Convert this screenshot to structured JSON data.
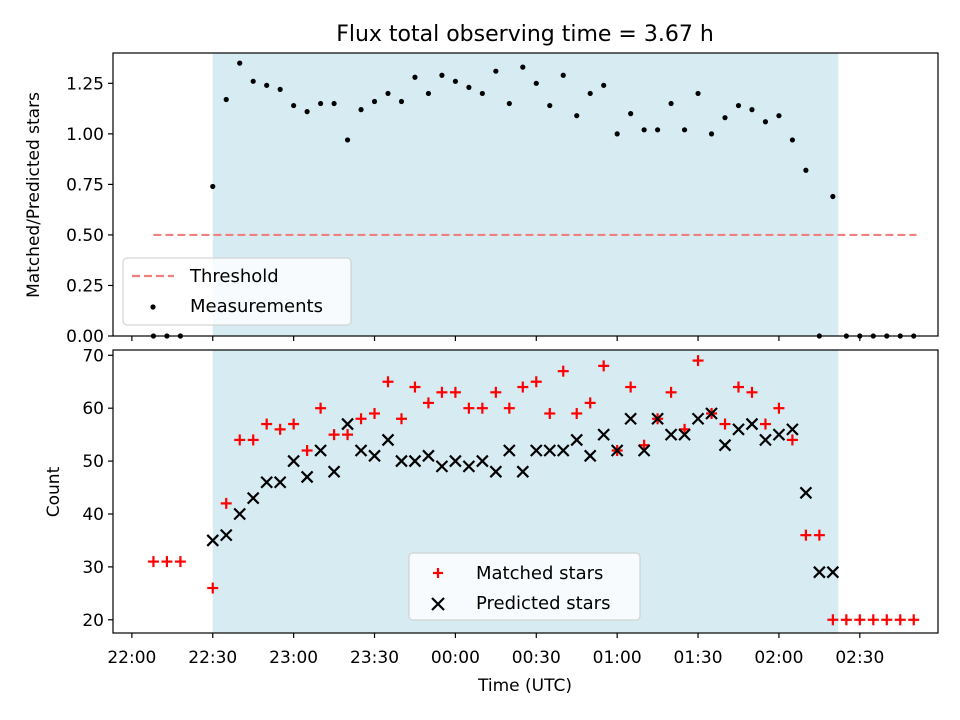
{
  "chart_data": [
    {
      "type": "scatter",
      "title": "Flux total observing time = 3.67 h",
      "ylabel": "Matched/Predicted stars",
      "xlabel": "",
      "ylim": [
        0,
        1.4
      ],
      "xlim": [
        -7,
        299
      ],
      "grid": false,
      "legend_placement": "lower-left",
      "x_unit": "minutes after 22:00 UTC",
      "shaded_span": [
        30,
        262
      ],
      "yticks": [
        0.0,
        0.25,
        0.5,
        0.75,
        1.0,
        1.25
      ],
      "ytick_labels": [
        "0.00",
        "0.25",
        "0.50",
        "0.75",
        "1.00",
        "1.25"
      ],
      "threshold": {
        "name": "Threshold",
        "y": 0.5,
        "x_range": [
          8,
          291
        ],
        "color": "#f08080"
      },
      "measurements": {
        "name": "Measurements",
        "color": "#000000",
        "x": [
          8,
          13,
          18,
          30,
          35,
          40,
          45,
          50,
          55,
          60,
          65,
          70,
          75,
          80,
          85,
          90,
          95,
          100,
          105,
          110,
          115,
          120,
          125,
          130,
          135,
          140,
          145,
          150,
          155,
          160,
          165,
          170,
          175,
          180,
          185,
          190,
          195,
          200,
          205,
          210,
          215,
          220,
          225,
          230,
          235,
          240,
          245,
          250,
          255,
          260,
          265,
          270,
          275,
          280,
          285,
          290
        ],
        "y": [
          0.0,
          0.0,
          0.0,
          0.74,
          1.17,
          1.35,
          1.26,
          1.24,
          1.22,
          1.14,
          1.11,
          1.15,
          1.15,
          0.97,
          1.12,
          1.16,
          1.2,
          1.16,
          1.28,
          1.2,
          1.29,
          1.26,
          1.23,
          1.2,
          1.31,
          1.15,
          1.33,
          1.25,
          1.14,
          1.29,
          1.09,
          1.2,
          1.24,
          1.0,
          1.1,
          1.02,
          1.02,
          1.15,
          1.02,
          1.2,
          1.0,
          1.08,
          1.14,
          1.12,
          1.06,
          1.09,
          0.97,
          0.82,
          0.0,
          0.69,
          0.0,
          0.0,
          0.0,
          0.0,
          0.0,
          0.0
        ]
      }
    },
    {
      "type": "scatter",
      "title": "",
      "ylabel": "Count",
      "xlabel": "Time (UTC)",
      "ylim": [
        17.5,
        71
      ],
      "xlim": [
        -7,
        299
      ],
      "grid": false,
      "legend_placement": "lower-center",
      "x_unit": "minutes after 22:00 UTC",
      "shaded_span": [
        30,
        262
      ],
      "yticks": [
        20,
        30,
        40,
        50,
        60,
        70
      ],
      "ytick_labels": [
        "20",
        "30",
        "40",
        "50",
        "60",
        "70"
      ],
      "xtick_values": [
        0,
        30,
        60,
        90,
        120,
        150,
        180,
        210,
        240,
        270
      ],
      "xtick_labels": [
        "22:00",
        "22:30",
        "23:00",
        "23:30",
        "00:00",
        "00:30",
        "01:00",
        "01:30",
        "02:00",
        "02:30"
      ],
      "series": [
        {
          "name": "Matched stars",
          "marker": "plus",
          "color": "#ff0000",
          "x": [
            8,
            13,
            18,
            30,
            35,
            40,
            45,
            50,
            55,
            60,
            65,
            70,
            75,
            80,
            85,
            90,
            95,
            100,
            105,
            110,
            115,
            120,
            125,
            130,
            135,
            140,
            145,
            150,
            155,
            160,
            165,
            170,
            175,
            180,
            185,
            190,
            195,
            200,
            205,
            210,
            215,
            220,
            225,
            230,
            235,
            240,
            245,
            250,
            255,
            260,
            265,
            270,
            275,
            280,
            285,
            290
          ],
          "y": [
            31,
            31,
            31,
            26,
            42,
            54,
            54,
            57,
            56,
            57,
            52,
            60,
            55,
            55,
            58,
            59,
            65,
            58,
            64,
            61,
            63,
            63,
            60,
            60,
            63,
            60,
            64,
            65,
            59,
            67,
            59,
            61,
            68,
            52,
            64,
            53,
            58,
            63,
            56,
            69,
            59,
            57,
            64,
            63,
            57,
            60,
            54,
            36,
            36,
            20,
            20,
            20,
            20,
            20,
            20,
            20
          ]
        },
        {
          "name": "Predicted stars",
          "marker": "x",
          "color": "#000000",
          "x": [
            30,
            35,
            40,
            45,
            50,
            55,
            60,
            65,
            70,
            75,
            80,
            85,
            90,
            95,
            100,
            105,
            110,
            115,
            120,
            125,
            130,
            135,
            140,
            145,
            150,
            155,
            160,
            165,
            170,
            175,
            180,
            185,
            190,
            195,
            200,
            205,
            210,
            215,
            220,
            225,
            230,
            235,
            240,
            245,
            250,
            255,
            260
          ],
          "y": [
            35,
            36,
            40,
            43,
            46,
            46,
            50,
            47,
            52,
            48,
            57,
            52,
            51,
            54,
            50,
            50,
            51,
            49,
            50,
            49,
            50,
            48,
            52,
            48,
            52,
            52,
            52,
            54,
            51,
            55,
            52,
            58,
            52,
            58,
            55,
            55,
            58,
            59,
            53,
            56,
            57,
            54,
            55,
            56,
            44,
            29,
            29
          ]
        }
      ]
    }
  ]
}
